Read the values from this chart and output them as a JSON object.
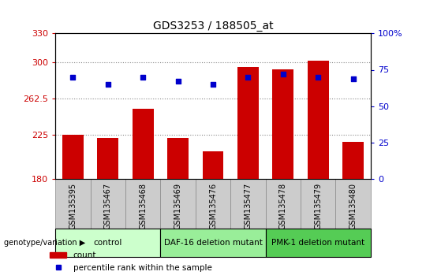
{
  "title": "GDS3253 / 188505_at",
  "samples": [
    "GSM135395",
    "GSM135467",
    "GSM135468",
    "GSM135469",
    "GSM135476",
    "GSM135477",
    "GSM135478",
    "GSM135479",
    "GSM135480"
  ],
  "bar_values": [
    225,
    222,
    252,
    222,
    208,
    295,
    293,
    302,
    218
  ],
  "percentile_values": [
    70,
    65,
    70,
    67,
    65,
    70,
    72,
    70,
    69
  ],
  "y_min": 180,
  "y_max": 330,
  "y_ticks": [
    180,
    225,
    262.5,
    300,
    330
  ],
  "y_tick_labels": [
    "180",
    "225",
    "262.5",
    "300",
    "330"
  ],
  "y2_ticks": [
    0,
    25,
    50,
    75,
    100
  ],
  "y2_tick_labels": [
    "0",
    "25",
    "50",
    "75",
    "100%"
  ],
  "bar_color": "#cc0000",
  "dot_color": "#0000cc",
  "groups": [
    {
      "label": "control",
      "start": 0,
      "end": 3
    },
    {
      "label": "DAF-16 deletion mutant",
      "start": 3,
      "end": 6
    },
    {
      "label": "PMK-1 deletion mutant",
      "start": 6,
      "end": 9
    }
  ],
  "group_colors": [
    "#ccffcc",
    "#99ee99",
    "#55cc55"
  ],
  "group_label": "genotype/variation",
  "legend_count_label": "count",
  "legend_pct_label": "percentile rank within the sample",
  "grid_color": "#888888",
  "background_color": "#ffffff",
  "plot_bg": "#ffffff",
  "tick_label_color_left": "#cc0000",
  "tick_label_color_right": "#0000cc",
  "sample_box_color": "#cccccc",
  "sample_box_edge": "#888888"
}
